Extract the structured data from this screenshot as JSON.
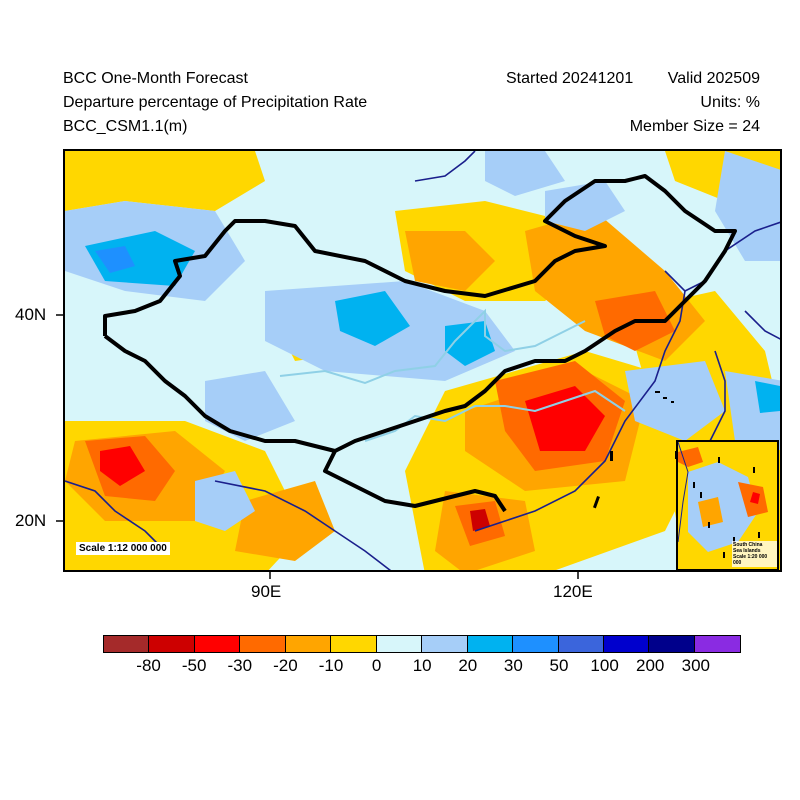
{
  "header": {
    "title": "BCC One-Month Forecast",
    "subtitle": "Departure percentage of Precipitation Rate",
    "model": "BCC_CSM1.1(m)",
    "started": "Started 20241201",
    "valid": "Valid 202509",
    "units": "Units: %",
    "member_size": "Member Size = 24"
  },
  "map": {
    "y_axis_labels": [
      "40N",
      "20N"
    ],
    "x_axis_labels": [
      "90E",
      "120E"
    ],
    "scale_note": "Scale 1:12 000 000",
    "inset_note_line1": "South China",
    "inset_note_line2": "Sea Islands",
    "inset_note_line3": "Scale 1:20 000 000",
    "border_color": "#000000",
    "coast_color": "#1a1f8c",
    "river_color": "#8fd0e6"
  },
  "colorbar": {
    "labels": [
      "-80",
      "-50",
      "-30",
      "-20",
      "-10",
      "0",
      "10",
      "20",
      "30",
      "50",
      "100",
      "200",
      "300"
    ],
    "colors": [
      "#a52a2a",
      "#cd0000",
      "#ff0000",
      "#ff6a00",
      "#ffa500",
      "#ffd700",
      "#d7f6fa",
      "#a6cef8",
      "#00b2f0",
      "#1e90ff",
      "#3b65dc",
      "#0000cd",
      "#00008b",
      "#8a2be2"
    ]
  }
}
